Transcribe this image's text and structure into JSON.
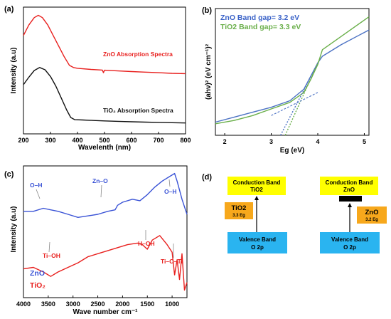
{
  "chart_data": [
    {
      "panel": "(a)",
      "type": "line",
      "xlabel": "Wavelenth (nm)",
      "ylabel": "Intensity (a.u)",
      "xlim": [
        200,
        800
      ],
      "xticks": [
        "200",
        "300",
        "400",
        "500",
        "600",
        "700",
        "800"
      ],
      "series": [
        {
          "name": "ZnO Absorption Spectra",
          "color": "#e8201e",
          "x": [
            200,
            220,
            240,
            255,
            270,
            290,
            310,
            330,
            350,
            370,
            385,
            400,
            450,
            492,
            496,
            500,
            550,
            600,
            650,
            700,
            750,
            800
          ],
          "y": [
            0.86,
            0.93,
            0.98,
            0.995,
            0.98,
            0.93,
            0.86,
            0.79,
            0.72,
            0.66,
            0.645,
            0.64,
            0.632,
            0.628,
            0.61,
            0.627,
            0.622,
            0.618,
            0.614,
            0.61,
            0.606,
            0.604
          ]
        },
        {
          "name": "TiO₂ Absorption Spectra",
          "color": "#111111",
          "x": [
            200,
            220,
            240,
            260,
            280,
            300,
            320,
            340,
            360,
            375,
            390,
            420,
            460,
            500,
            550,
            600,
            650,
            700,
            750,
            800
          ],
          "y": [
            0.53,
            0.58,
            0.625,
            0.645,
            0.63,
            0.585,
            0.52,
            0.44,
            0.36,
            0.31,
            0.295,
            0.293,
            0.29,
            0.287,
            0.284,
            0.281,
            0.279,
            0.277,
            0.275,
            0.273
          ]
        }
      ]
    },
    {
      "panel": "(b)",
      "type": "line",
      "xlabel": "Eg (eV)",
      "ylabel": "(ahν)² (eV cm⁻¹)²",
      "xlim": [
        1.8,
        5.1
      ],
      "xticks": [
        "2",
        "3",
        "4",
        "5"
      ],
      "legend": [
        "ZnO Band gap= 3.2 eV",
        "TiO2 Band gap= 3.3 eV"
      ],
      "series": [
        {
          "name": "ZnO Band gap= 3.2 eV",
          "color": "#4c72c4",
          "x": [
            1.8,
            2.2,
            2.6,
            3.0,
            3.4,
            3.7,
            3.85,
            4.0,
            4.1,
            4.5,
            5.1
          ],
          "y": [
            0.16,
            0.19,
            0.22,
            0.25,
            0.29,
            0.36,
            0.44,
            0.52,
            0.56,
            0.63,
            0.72
          ]
        },
        {
          "name": "TiO2 Band gap= 3.3 eV",
          "color": "#6aaf4a",
          "x": [
            1.8,
            2.2,
            2.6,
            3.0,
            3.4,
            3.7,
            3.85,
            4.0,
            4.1,
            4.5,
            5.1
          ],
          "y": [
            0.15,
            0.17,
            0.2,
            0.24,
            0.28,
            0.34,
            0.42,
            0.51,
            0.6,
            0.68,
            0.8
          ]
        }
      ]
    },
    {
      "panel": "(c)",
      "type": "line",
      "xlabel": "Wave number cm⁻¹",
      "ylabel": "Intensity (a.u)",
      "xlim": [
        4000,
        700
      ],
      "xticks": [
        "4000",
        "3500",
        "3000",
        "2500",
        "2000",
        "1500",
        "1000"
      ],
      "legend": [
        "ZnO",
        "TiO₂"
      ],
      "annotations": [
        "O–H",
        "Zn–O",
        "O–H",
        "Ti–OH",
        "H–OH",
        "Ti–O–Ti"
      ],
      "series": [
        {
          "name": "ZnO",
          "color": "#3a53d6",
          "x": [
            4000,
            3800,
            3600,
            3450,
            3300,
            3100,
            2900,
            2700,
            2500,
            2300,
            2150,
            2100,
            2000,
            1800,
            1650,
            1500,
            1350,
            1200,
            1050,
            950,
            900,
            800,
            700
          ],
          "y": [
            0.72,
            0.72,
            0.74,
            0.73,
            0.72,
            0.7,
            0.68,
            0.69,
            0.7,
            0.72,
            0.73,
            0.76,
            0.78,
            0.8,
            0.79,
            0.83,
            0.88,
            0.92,
            0.95,
            0.97,
            0.92,
            0.8,
            0.7
          ]
        },
        {
          "name": "TiO₂",
          "color": "#e8201e",
          "x": [
            4000,
            3800,
            3600,
            3450,
            3300,
            3100,
            2900,
            2700,
            2500,
            2300,
            2100,
            1900,
            1700,
            1600,
            1500,
            1400,
            1250,
            1100,
            1000,
            950,
            900,
            850,
            800,
            750,
            700
          ],
          "y": [
            0.34,
            0.35,
            0.32,
            0.29,
            0.32,
            0.35,
            0.38,
            0.42,
            0.44,
            0.46,
            0.48,
            0.5,
            0.51,
            0.5,
            0.47,
            0.53,
            0.56,
            0.5,
            0.45,
            0.3,
            0.4,
            0.27,
            0.44,
            0.2,
            0.25
          ]
        }
      ]
    }
  ],
  "panel_d": {
    "label": "(d)",
    "left": {
      "conduction": [
        "Conduction Band",
        "TiO2"
      ],
      "material": "TiO2",
      "eg": "3.3 Eg",
      "valence": [
        "Valence Band",
        "O 2p"
      ]
    },
    "right": {
      "conduction": [
        "Conduction Band",
        "ZnO"
      ],
      "material": "ZnO",
      "eg": "3.2 Eg",
      "valence": [
        "Valence Band",
        "O 2p"
      ]
    },
    "colors": {
      "band": "#ffff00",
      "valence": "#2ab4f0",
      "material": "#f7a81c",
      "black": "#000000"
    }
  }
}
